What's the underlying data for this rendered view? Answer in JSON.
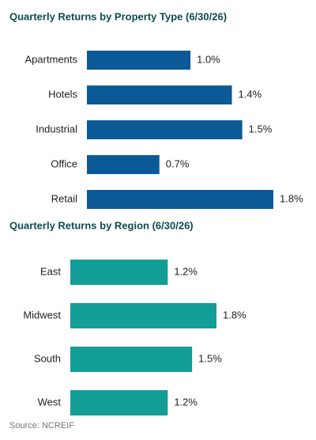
{
  "chart_data": [
    {
      "type": "bar",
      "orientation": "horizontal",
      "title": "Quarterly Returns by Property Type (6/30/26)",
      "categories": [
        "Apartments",
        "Hotels",
        "Industrial",
        "Office",
        "Retail"
      ],
      "values": [
        1.0,
        1.4,
        1.5,
        0.7,
        1.8
      ],
      "value_labels": [
        "1.0%",
        "1.4%",
        "1.5%",
        "0.7%",
        "1.8%"
      ],
      "color": "#0b5a97"
    },
    {
      "type": "bar",
      "orientation": "horizontal",
      "title": "Quarterly Returns by Region (6/30/26)",
      "categories": [
        "East",
        "Midwest",
        "South",
        "West"
      ],
      "values": [
        1.2,
        1.8,
        1.5,
        1.2
      ],
      "value_labels": [
        "1.2%",
        "1.8%",
        "1.5%",
        "1.2%"
      ],
      "color": "#129e97"
    }
  ],
  "source": "Source: NCREIF"
}
